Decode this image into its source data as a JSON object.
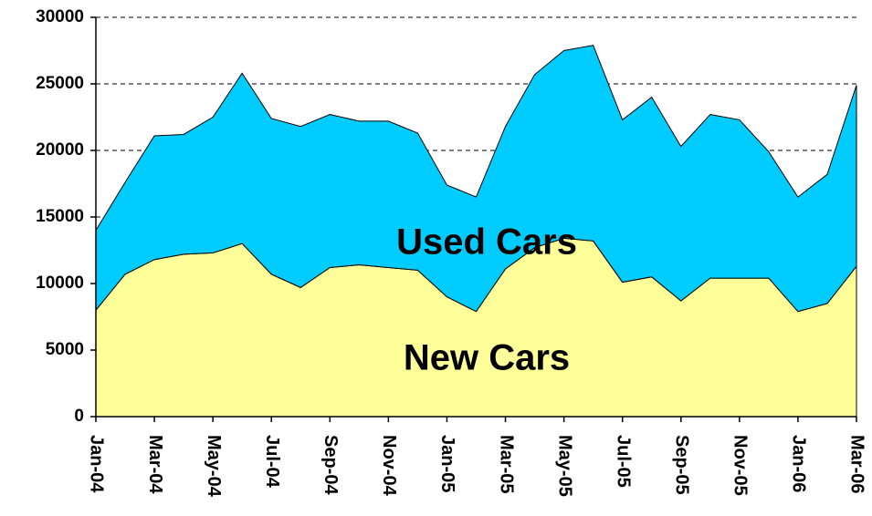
{
  "chart_data": {
    "type": "stacked_area",
    "categories": [
      "Jan-04",
      null,
      "Mar-04",
      null,
      "May-04",
      null,
      "Jul-04",
      null,
      "Sep-04",
      null,
      "Nov-04",
      null,
      "Jan-05",
      null,
      "Mar-05",
      null,
      "May-05",
      null,
      "Jul-05",
      null,
      "Sep-05",
      null,
      "Nov-05",
      null,
      "Jan-06",
      null,
      "Mar-06"
    ],
    "series": [
      {
        "name": "New Cars",
        "color": "#ffff99",
        "values": [
          8000,
          10700,
          11800,
          12200,
          12300,
          13000,
          10700,
          9700,
          11200,
          11400,
          11200,
          11000,
          9000,
          7900,
          11100,
          12700,
          13400,
          13200,
          10100,
          10500,
          8700,
          10400,
          10400,
          10400,
          7900,
          8500,
          11300
        ]
      },
      {
        "name": "Used Cars",
        "color": "#00ccff",
        "values": [
          6000,
          6900,
          9300,
          9000,
          10200,
          12800,
          11700,
          12100,
          11500,
          10800,
          11000,
          10300,
          8400,
          8600,
          10700,
          13000,
          14100,
          14700,
          12200,
          13500,
          11600,
          12300,
          11900,
          9500,
          8600,
          9700,
          13600
        ]
      }
    ],
    "ylim": [
      0,
      30000
    ],
    "yticks": [
      0,
      5000,
      10000,
      15000,
      20000,
      25000,
      30000
    ],
    "grid": true
  }
}
